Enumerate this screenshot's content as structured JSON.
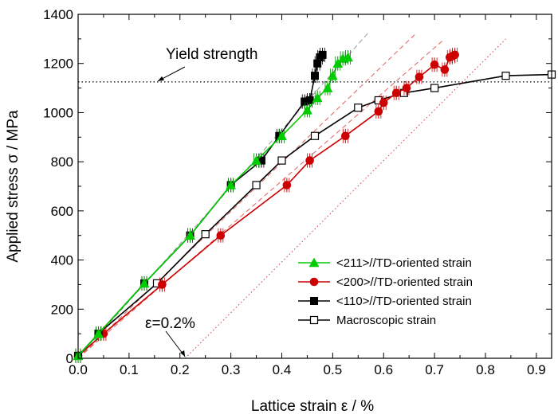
{
  "chart_data": {
    "type": "line",
    "xlabel": "Lattice strain ε / %",
    "ylabel": "Applied stress σ / MPa",
    "xlim": [
      0,
      0.93
    ],
    "ylim": [
      0,
      1400
    ],
    "x_ticks": [
      0.0,
      0.1,
      0.2,
      0.3,
      0.4,
      0.5,
      0.6,
      0.7,
      0.8,
      0.9
    ],
    "x_tick_labels": [
      "0.0",
      "0.1",
      "0.2",
      "0.3",
      "0.4",
      "0.5",
      "0.6",
      "0.7",
      "0.8",
      "0.9"
    ],
    "y_ticks": [
      0,
      200,
      400,
      600,
      800,
      1000,
      1200,
      1400
    ],
    "y_tick_labels": [
      "0",
      "200",
      "400",
      "600",
      "800",
      "1000",
      "1200",
      "1400"
    ],
    "legend_position": "bottom-right",
    "series": [
      {
        "name": "<211>//TD-oriented strain",
        "color": "#00cc00",
        "marker": "triangle",
        "x": [
          0.0,
          0.04,
          0.13,
          0.22,
          0.3,
          0.35,
          0.4,
          0.45,
          0.47,
          0.49,
          0.5,
          0.51,
          0.52,
          0.53
        ],
        "y": [
          10,
          100,
          305,
          500,
          705,
          805,
          905,
          1010,
          1060,
          1100,
          1150,
          1200,
          1220,
          1225
        ]
      },
      {
        "name": "<200>//TD-oriented strain",
        "color": "#cc0000",
        "marker": "circle",
        "x": [
          0.0,
          0.05,
          0.165,
          0.28,
          0.41,
          0.455,
          0.525,
          0.59,
          0.6,
          0.625,
          0.645,
          0.67,
          0.7,
          0.72,
          0.73,
          0.735,
          0.74
        ],
        "y": [
          10,
          100,
          300,
          500,
          705,
          805,
          905,
          1005,
          1040,
          1080,
          1100,
          1145,
          1195,
          1175,
          1225,
          1230,
          1235
        ]
      },
      {
        "name": "<110>//TD-oriented strain",
        "color": "#000000",
        "marker": "square",
        "x": [
          0.0,
          0.04,
          0.13,
          0.22,
          0.3,
          0.36,
          0.395,
          0.445,
          0.455,
          0.465,
          0.47,
          0.475,
          0.48
        ],
        "y": [
          10,
          100,
          305,
          500,
          705,
          805,
          905,
          1045,
          1050,
          1150,
          1200,
          1225,
          1235
        ]
      },
      {
        "name": "Macroscopic strain",
        "color": "#000000",
        "marker": "open-square",
        "x": [
          0.0,
          0.04,
          0.155,
          0.25,
          0.35,
          0.4,
          0.465,
          0.55,
          0.59,
          0.64,
          0.7,
          0.84,
          0.93
        ],
        "y": [
          10,
          100,
          305,
          505,
          705,
          805,
          905,
          1020,
          1050,
          1080,
          1100,
          1150,
          1155
        ]
      }
    ],
    "guides": {
      "yield_strength_value": 1125,
      "offset_strain_x": 0.21,
      "green_slope_line": {
        "x": [
          0.0,
          0.57
        ],
        "y": [
          0,
          1325
        ]
      },
      "red_slope_line": {
        "x": [
          0.0,
          0.665
        ],
        "y": [
          0,
          1325
        ]
      },
      "black_slope_line": {
        "x": [
          0.0,
          0.72
        ],
        "y": [
          0,
          1300
        ]
      },
      "offset_line": {
        "x": [
          0.21,
          0.84
        ],
        "y": [
          0,
          1300
        ]
      }
    },
    "annotations": {
      "yield_strength": "Yield strength",
      "offset": "ε=0.2%"
    }
  }
}
